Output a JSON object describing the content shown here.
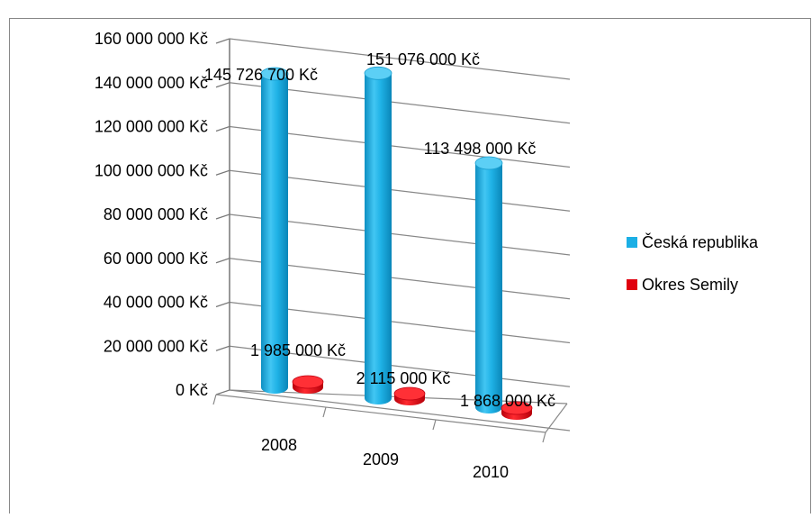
{
  "chart_data": {
    "type": "bar",
    "title": "",
    "categories": [
      "2008",
      "2009",
      "2010"
    ],
    "series": [
      {
        "name": "Česká republika",
        "values": [
          145726700,
          151076000,
          113498000
        ],
        "color": "#1BAFE5",
        "labels": [
          "145 726 700 Kč",
          "151 076 000 Kč",
          "113 498 000 Kč"
        ]
      },
      {
        "name": "Okres Semily",
        "values": [
          1985000,
          2115000,
          1868000
        ],
        "color": "#E0000E",
        "labels": [
          "1 985 000 Kč",
          "2 115 000 Kč",
          "1 868 000 Kč"
        ]
      }
    ],
    "ylim": [
      0,
      160000000
    ],
    "yticks": [
      0,
      20000000,
      40000000,
      60000000,
      80000000,
      100000000,
      120000000,
      140000000,
      160000000
    ],
    "ytick_labels": [
      "0 Kč",
      "20 000 000 Kč",
      "40 000 000 Kč",
      "60 000 000 Kč",
      "80 000 000 Kč",
      "100 000 000 Kč",
      "120 000 000 Kč",
      "140 000 000 Kč",
      "160 000 000 Kč"
    ],
    "grid": true,
    "legend": "right",
    "style": "3d-cylinder"
  }
}
